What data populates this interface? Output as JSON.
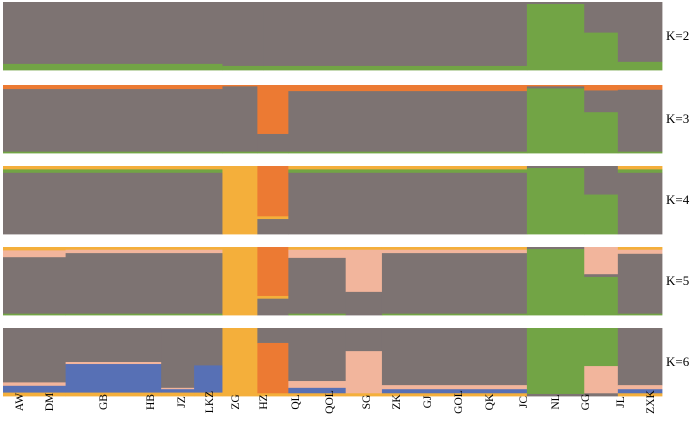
{
  "chart_data": {
    "type": "bar",
    "subtype": "stacked-ancestry",
    "populations": [
      "AW",
      "DM",
      "GB",
      "HB",
      "JZ",
      "LKZ",
      "ZG",
      "HZ",
      "QL",
      "QOL",
      "SG",
      "ZK",
      "GJ",
      "GOL",
      "QK",
      "JC",
      "NL",
      "GG",
      "JL",
      "ZXK"
    ],
    "colors": {
      "grey": "#7d7372",
      "green": "#72a445",
      "orange": "#ec7a33",
      "yellow": "#f4af3b",
      "pink": "#f2b59c",
      "blue": "#5770b5"
    },
    "panels": [
      {
        "label": "K=2",
        "k": 2,
        "segments": [
          {
            "from": 0.0,
            "to": 0.333,
            "props": {
              "grey": 0.91,
              "green": 0.09
            }
          },
          {
            "from": 0.333,
            "to": 0.395,
            "props": {
              "grey": 0.94,
              "green": 0.06
            }
          },
          {
            "from": 0.395,
            "to": 0.795,
            "props": {
              "grey": 0.94,
              "green": 0.06
            }
          },
          {
            "from": 0.795,
            "to": 0.882,
            "props": {
              "grey": 0.03,
              "green": 0.97
            }
          },
          {
            "from": 0.882,
            "to": 0.933,
            "props": {
              "grey": 0.45,
              "green": 0.55
            }
          },
          {
            "from": 0.933,
            "to": 1.0,
            "props": {
              "grey": 0.88,
              "green": 0.12
            }
          }
        ]
      },
      {
        "label": "K=3",
        "k": 3,
        "segments": [
          {
            "from": 0.0,
            "to": 0.333,
            "props": {
              "orange": 0.06,
              "grey": 0.92,
              "green": 0.02
            }
          },
          {
            "from": 0.333,
            "to": 0.386,
            "props": {
              "orange": 0.02,
              "grey": 0.96,
              "green": 0.02
            }
          },
          {
            "from": 0.386,
            "to": 0.433,
            "props": {
              "orange": 0.72,
              "grey": 0.26,
              "green": 0.02
            }
          },
          {
            "from": 0.433,
            "to": 0.795,
            "props": {
              "orange": 0.09,
              "grey": 0.89,
              "green": 0.02
            }
          },
          {
            "from": 0.795,
            "to": 0.882,
            "props": {
              "orange": 0.02,
              "grey": 0.03,
              "green": 0.95
            }
          },
          {
            "from": 0.882,
            "to": 0.933,
            "props": {
              "orange": 0.08,
              "grey": 0.32,
              "green": 0.6
            }
          },
          {
            "from": 0.933,
            "to": 1.0,
            "props": {
              "orange": 0.07,
              "grey": 0.91,
              "green": 0.02
            }
          }
        ]
      },
      {
        "label": "K=4",
        "k": 4,
        "segments": [
          {
            "from": 0.0,
            "to": 0.333,
            "props": {
              "yellow": 0.05,
              "green": 0.05,
              "grey": 0.9
            }
          },
          {
            "from": 0.333,
            "to": 0.386,
            "props": {
              "yellow": 1.0
            }
          },
          {
            "from": 0.386,
            "to": 0.433,
            "props": {
              "orange": 0.74,
              "yellow": 0.04,
              "grey": 0.22
            }
          },
          {
            "from": 0.433,
            "to": 0.795,
            "props": {
              "yellow": 0.05,
              "green": 0.05,
              "grey": 0.9
            }
          },
          {
            "from": 0.795,
            "to": 0.882,
            "props": {
              "grey": 0.03,
              "green": 0.97
            }
          },
          {
            "from": 0.882,
            "to": 0.933,
            "props": {
              "grey": 0.42,
              "green": 0.58
            }
          },
          {
            "from": 0.933,
            "to": 1.0,
            "props": {
              "yellow": 0.05,
              "green": 0.05,
              "grey": 0.9
            }
          }
        ]
      },
      {
        "label": "K=5",
        "k": 5,
        "segments": [
          {
            "from": 0.0,
            "to": 0.095,
            "props": {
              "yellow": 0.05,
              "pink": 0.1,
              "grey": 0.83,
              "green": 0.02
            }
          },
          {
            "from": 0.095,
            "to": 0.333,
            "props": {
              "yellow": 0.04,
              "pink": 0.05,
              "grey": 0.89,
              "green": 0.02
            }
          },
          {
            "from": 0.333,
            "to": 0.386,
            "props": {
              "yellow": 1.0
            }
          },
          {
            "from": 0.386,
            "to": 0.433,
            "props": {
              "orange": 0.72,
              "yellow": 0.04,
              "grey": 0.24
            }
          },
          {
            "from": 0.433,
            "to": 0.52,
            "props": {
              "yellow": 0.04,
              "pink": 0.12,
              "grey": 0.82,
              "green": 0.02
            }
          },
          {
            "from": 0.52,
            "to": 0.575,
            "props": {
              "yellow": 0.04,
              "pink": 0.62,
              "grey": 0.34
            }
          },
          {
            "from": 0.575,
            "to": 0.795,
            "props": {
              "yellow": 0.04,
              "pink": 0.05,
              "grey": 0.89,
              "green": 0.02
            }
          },
          {
            "from": 0.795,
            "to": 0.882,
            "props": {
              "grey": 0.03,
              "green": 0.97
            }
          },
          {
            "from": 0.882,
            "to": 0.933,
            "props": {
              "pink": 0.4,
              "grey": 0.04,
              "green": 0.56
            }
          },
          {
            "from": 0.933,
            "to": 1.0,
            "props": {
              "yellow": 0.04,
              "pink": 0.06,
              "grey": 0.88,
              "green": 0.02
            }
          }
        ]
      },
      {
        "label": "K=6",
        "k": 6,
        "segments": [
          {
            "from": 0.0,
            "to": 0.095,
            "props": {
              "grey": 0.8,
              "pink": 0.05,
              "blue": 0.1,
              "yellow": 0.05
            }
          },
          {
            "from": 0.095,
            "to": 0.24,
            "props": {
              "grey": 0.5,
              "pink": 0.03,
              "blue": 0.42,
              "yellow": 0.05
            }
          },
          {
            "from": 0.24,
            "to": 0.29,
            "props": {
              "grey": 0.88,
              "pink": 0.02,
              "blue": 0.05,
              "yellow": 0.05
            }
          },
          {
            "from": 0.29,
            "to": 0.333,
            "props": {
              "grey": 0.55,
              "blue": 0.4,
              "yellow": 0.05
            }
          },
          {
            "from": 0.333,
            "to": 0.386,
            "props": {
              "yellow": 1.0
            }
          },
          {
            "from": 0.386,
            "to": 0.433,
            "props": {
              "grey": 0.22,
              "orange": 0.74,
              "yellow": 0.04
            }
          },
          {
            "from": 0.433,
            "to": 0.52,
            "props": {
              "grey": 0.78,
              "pink": 0.1,
              "blue": 0.08,
              "yellow": 0.04
            }
          },
          {
            "from": 0.52,
            "to": 0.575,
            "props": {
              "grey": 0.34,
              "pink": 0.62,
              "yellow": 0.04
            }
          },
          {
            "from": 0.575,
            "to": 0.795,
            "props": {
              "grey": 0.84,
              "pink": 0.06,
              "blue": 0.06,
              "yellow": 0.04
            }
          },
          {
            "from": 0.795,
            "to": 0.882,
            "props": {
              "green": 0.97,
              "grey": 0.03
            }
          },
          {
            "from": 0.882,
            "to": 0.933,
            "props": {
              "green": 0.56,
              "pink": 0.4,
              "grey": 0.04
            }
          },
          {
            "from": 0.933,
            "to": 1.0,
            "props": {
              "grey": 0.84,
              "pink": 0.06,
              "blue": 0.06,
              "yellow": 0.04
            }
          }
        ]
      }
    ],
    "xlabel": "",
    "ylabel": "",
    "ylim": [
      0,
      1
    ],
    "grid": false,
    "legend": "none"
  }
}
